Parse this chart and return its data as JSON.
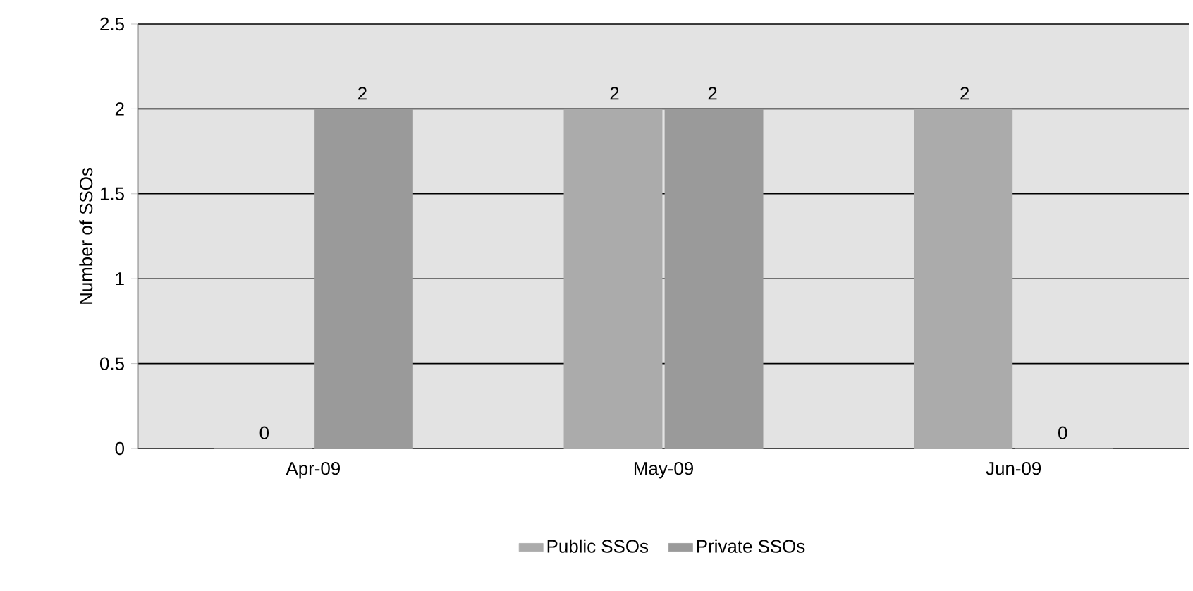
{
  "chart_data": {
    "type": "bar",
    "ylabel": "Number of SSOs",
    "categories": [
      "Apr-09",
      "May-09",
      "Jun-09"
    ],
    "series": [
      {
        "name": "Public SSOs",
        "color": "#ababab",
        "values": [
          0,
          2,
          2
        ]
      },
      {
        "name": "Private SSOs",
        "color": "#9a9a9a",
        "values": [
          2,
          2,
          0
        ]
      }
    ],
    "ylim": [
      0,
      2.5
    ],
    "yticks": [
      0,
      0.5,
      1,
      1.5,
      2,
      2.5
    ],
    "grid": "y",
    "legend": "bottom",
    "data_labels": true
  }
}
